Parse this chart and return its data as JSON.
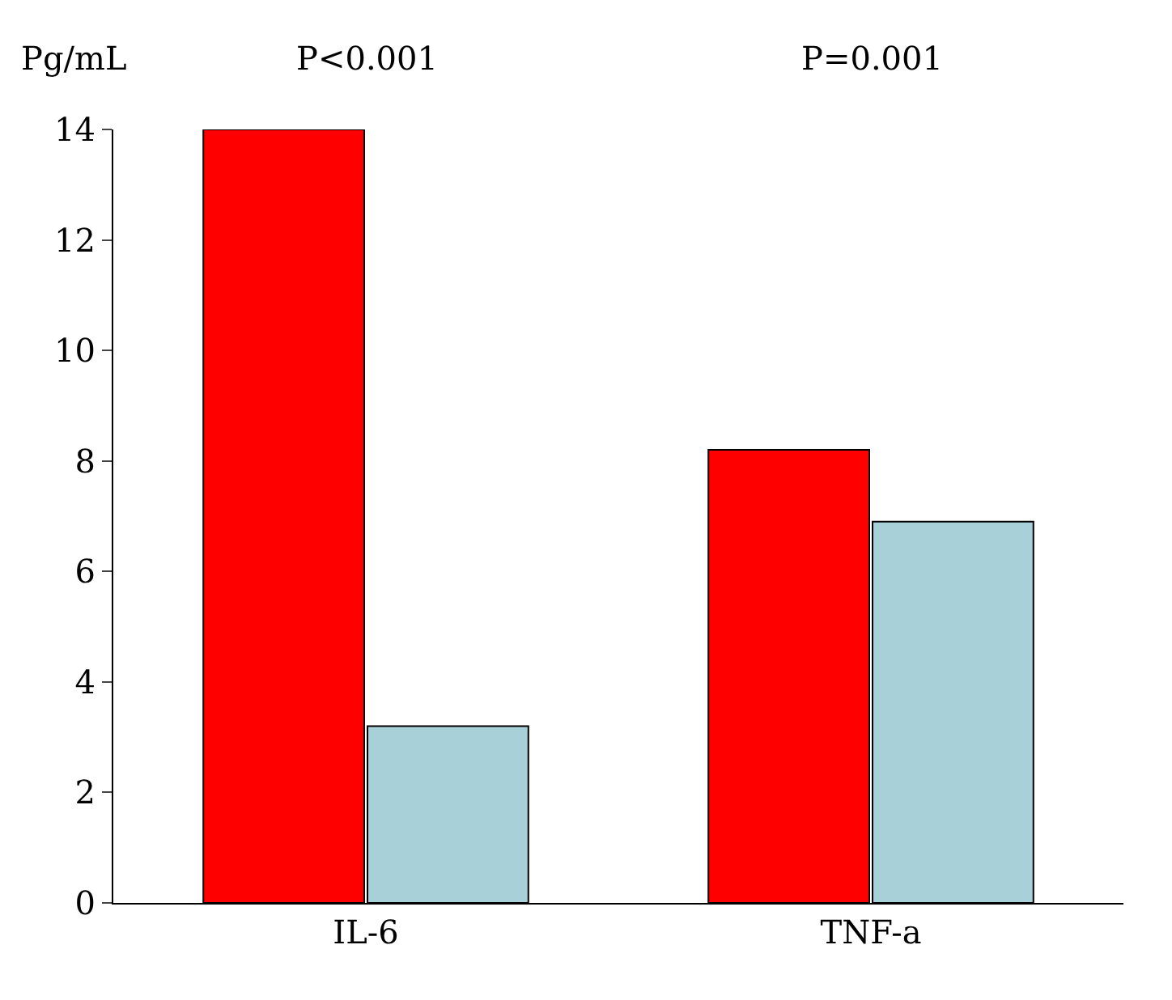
{
  "chart_data": {
    "type": "bar",
    "ylabel": "Pg/mL",
    "categories": [
      "IL-6",
      "TNF-a"
    ],
    "series": [
      {
        "color": "#ff0000",
        "values": [
          14,
          8.2
        ]
      },
      {
        "color": "#a8d0d8",
        "values": [
          3.2,
          6.9
        ]
      }
    ],
    "ylim": [
      0,
      14
    ],
    "yticks": [
      0,
      2,
      4,
      6,
      8,
      10,
      12,
      14
    ],
    "grid": false,
    "annotations": [
      "P<0.001",
      "P=0.001"
    ]
  }
}
